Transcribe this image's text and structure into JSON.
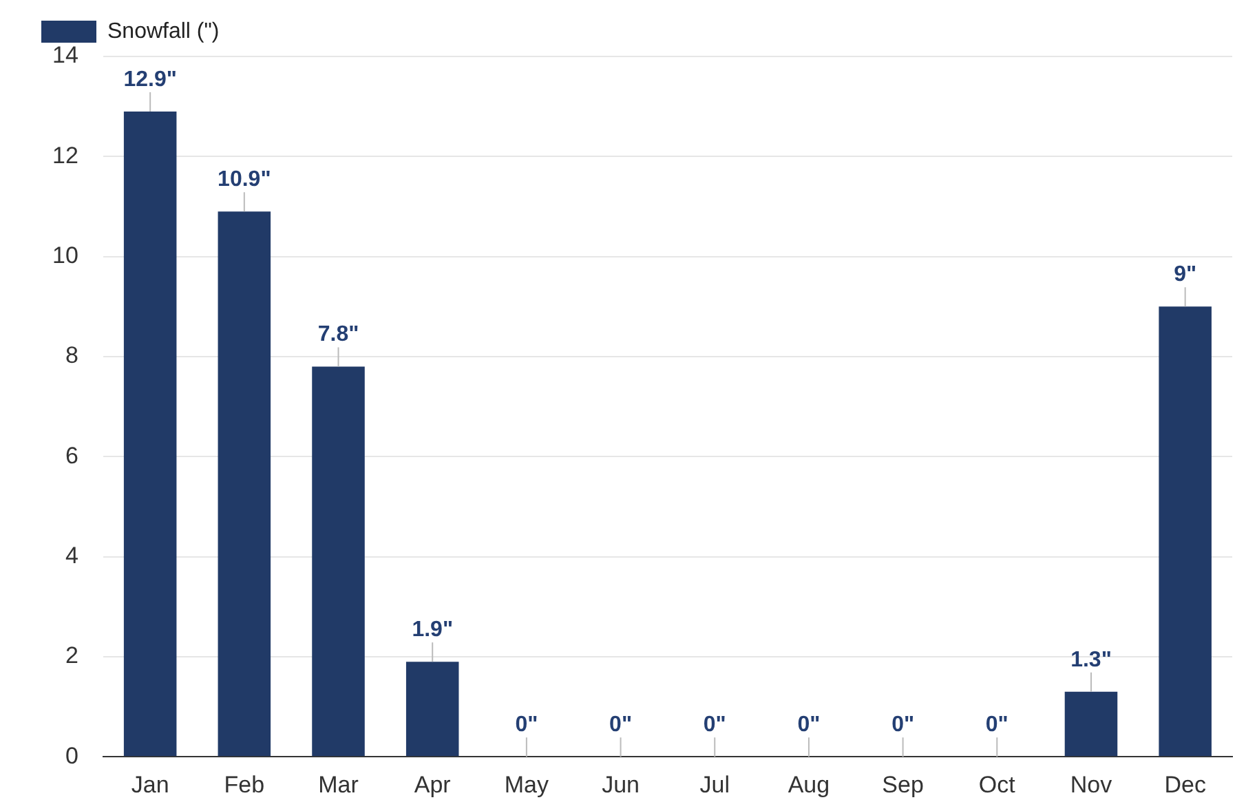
{
  "chart_data": {
    "type": "bar",
    "categories": [
      "Jan",
      "Feb",
      "Mar",
      "Apr",
      "May",
      "Jun",
      "Jul",
      "Aug",
      "Sep",
      "Oct",
      "Nov",
      "Dec"
    ],
    "series": [
      {
        "name": "Snowfall (\")",
        "color": "#213a67",
        "values": [
          12.9,
          10.9,
          7.8,
          1.9,
          0,
          0,
          0,
          0,
          0,
          0,
          1.3,
          9
        ],
        "value_labels": [
          "12.9\"",
          "10.9\"",
          "7.8\"",
          "1.9\"",
          "0\"",
          "0\"",
          "0\"",
          "0\"",
          "0\"",
          "0\"",
          "1.3\"",
          "9\""
        ]
      }
    ],
    "ylim": [
      0,
      14
    ],
    "yticks": [
      0,
      2,
      4,
      6,
      8,
      10,
      12,
      14
    ],
    "grid": "y",
    "legend": "top left"
  }
}
